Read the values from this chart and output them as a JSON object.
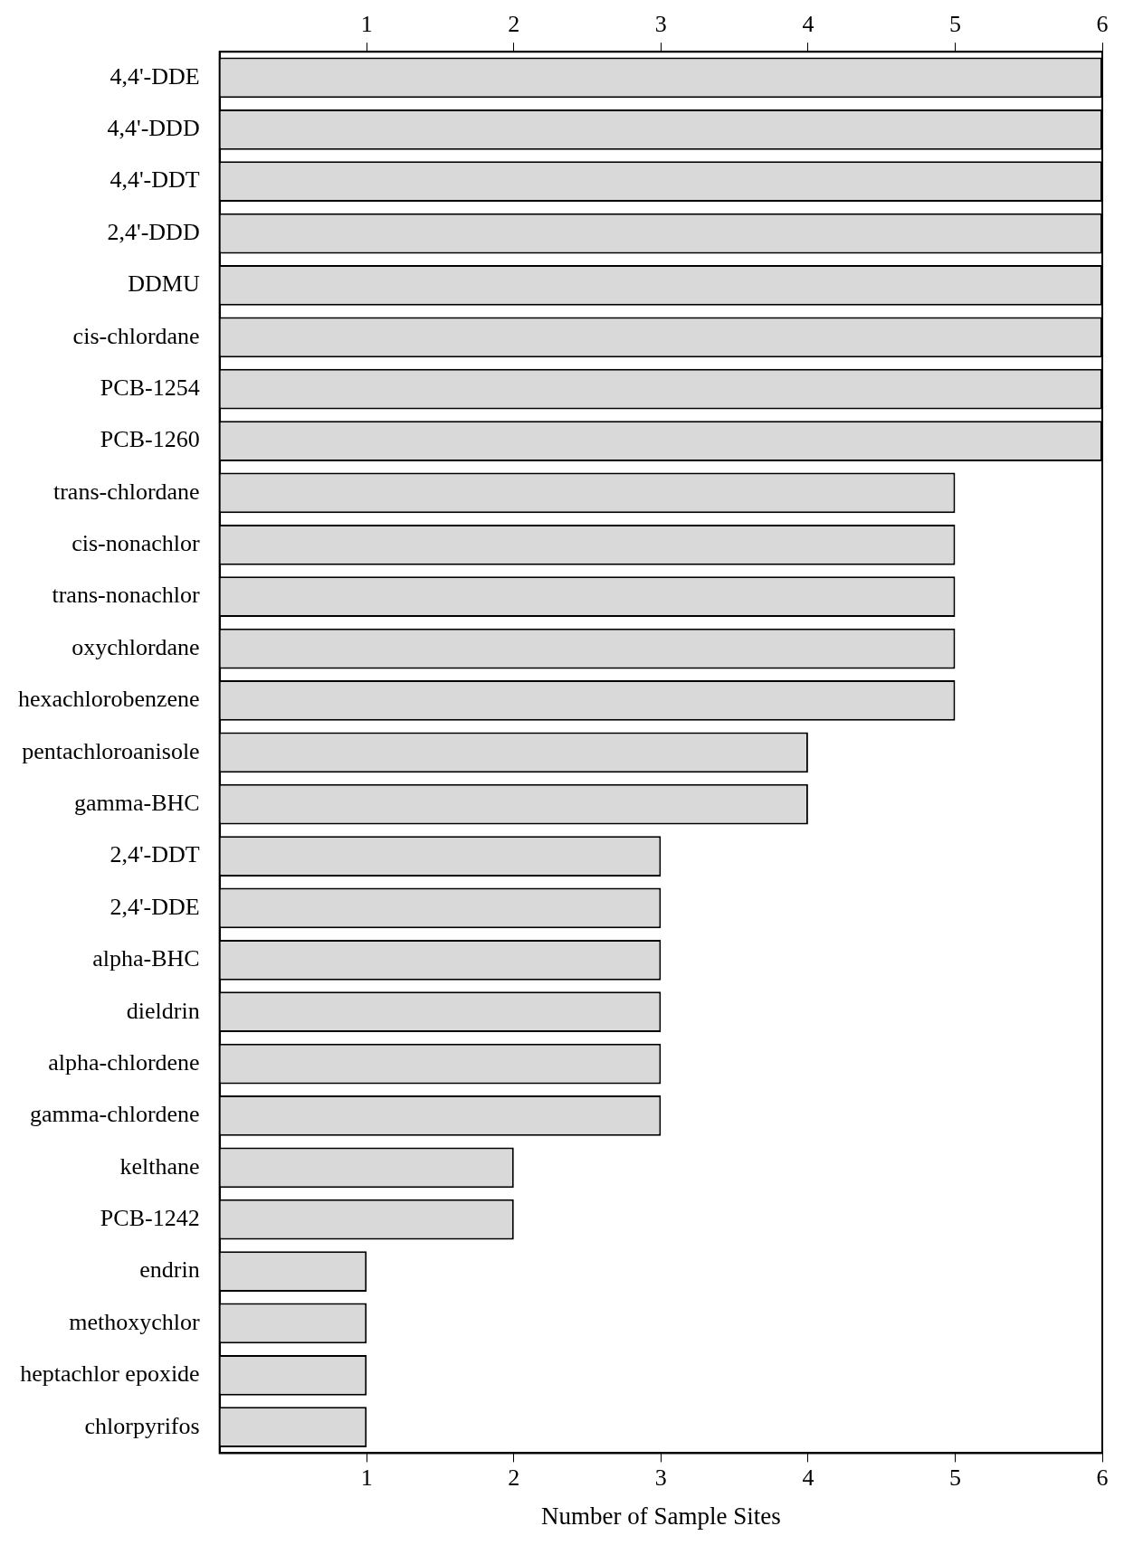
{
  "chart_data": {
    "type": "bar",
    "orientation": "horizontal",
    "xlabel": "Number of Sample Sites",
    "categories": [
      "4,4'-DDE",
      "4,4'-DDD",
      "4,4'-DDT",
      "2,4'-DDD",
      "DDMU",
      "cis-chlordane",
      "PCB-1254",
      "PCB-1260",
      "trans-chlordane",
      "cis-nonachlor",
      "trans-nonachlor",
      "oxychlordane",
      "hexachlorobenzene",
      "pentachloroanisole",
      "gamma-BHC",
      "2,4'-DDT",
      "2,4'-DDE",
      "alpha-BHC",
      "dieldrin",
      "alpha-chlordene",
      "gamma-chlordene",
      "kelthane",
      "PCB-1242",
      "endrin",
      "methoxychlor",
      "heptachlor epoxide",
      "chlorpyrifos"
    ],
    "values": [
      6,
      6,
      6,
      6,
      6,
      6,
      6,
      6,
      5,
      5,
      5,
      5,
      5,
      4,
      4,
      3,
      3,
      3,
      3,
      3,
      3,
      2,
      2,
      1,
      1,
      1,
      1
    ],
    "color": "#d9d9d9",
    "xlim": [
      0,
      6
    ],
    "xticks": [
      1,
      2,
      3,
      4,
      5,
      6
    ],
    "x2lim": [
      0,
      6
    ],
    "x2ticks": [
      1,
      2,
      3,
      4,
      5,
      6
    ],
    "grid": false,
    "legend": false
  }
}
